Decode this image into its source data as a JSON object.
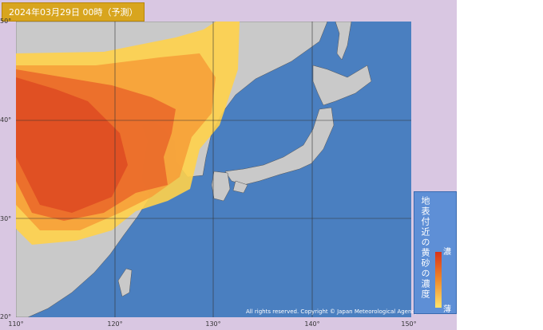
{
  "header": {
    "title": "2024年03月29日 00時（予測）"
  },
  "lat_labels": [
    "50°",
    "40°",
    "30°",
    "20°"
  ],
  "lon_labels": [
    "110°",
    "120°",
    "130°",
    "140°",
    "150°"
  ],
  "legend": {
    "title": "地表付近の黄砂の濃度",
    "high": "濃",
    "low": "薄"
  },
  "copyright": "All rights reserved. Copyright © Japan Meteorological Agency"
}
